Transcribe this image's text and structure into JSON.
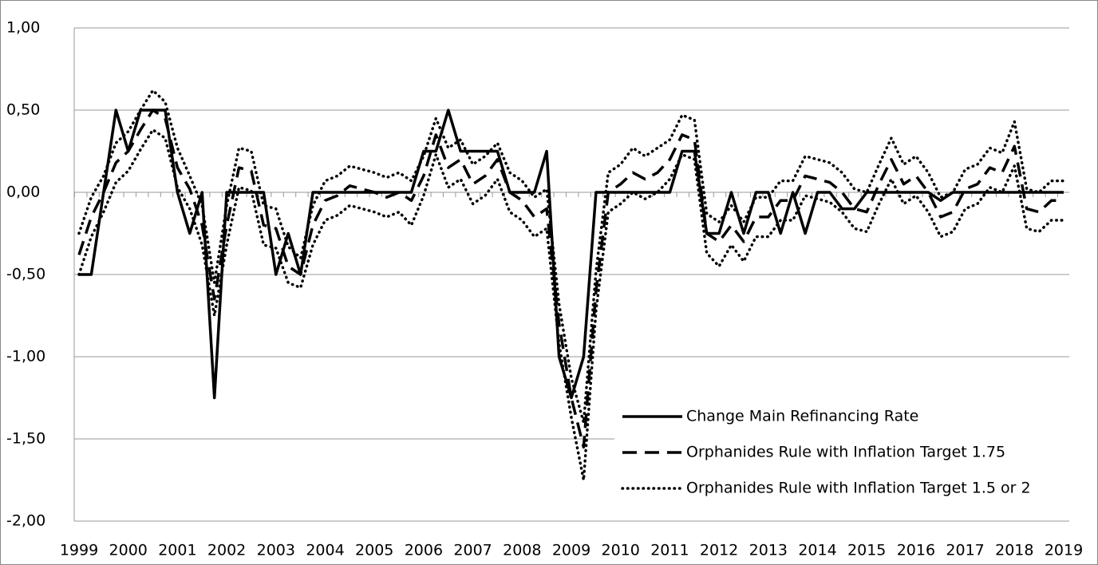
{
  "chart_data": {
    "type": "line",
    "x": [
      1999,
      1999.25,
      1999.5,
      1999.75,
      2000,
      2000.25,
      2000.5,
      2000.75,
      2001,
      2001.25,
      2001.5,
      2001.75,
      2002,
      2002.25,
      2002.5,
      2002.75,
      2003,
      2003.25,
      2003.5,
      2003.75,
      2004,
      2004.25,
      2004.5,
      2004.75,
      2005,
      2005.25,
      2005.5,
      2005.75,
      2006,
      2006.25,
      2006.5,
      2006.75,
      2007,
      2007.25,
      2007.5,
      2007.75,
      2008,
      2008.25,
      2008.5,
      2008.75,
      2009,
      2009.25,
      2009.5,
      2009.75,
      2010,
      2010.25,
      2010.5,
      2010.75,
      2011,
      2011.25,
      2011.5,
      2011.75,
      2012,
      2012.25,
      2012.5,
      2012.75,
      2013,
      2013.25,
      2013.5,
      2013.75,
      2014,
      2014.25,
      2014.5,
      2014.75,
      2015,
      2015.25,
      2015.5,
      2015.75,
      2016,
      2016.25,
      2016.5,
      2016.75,
      2017,
      2017.25,
      2017.5,
      2017.75,
      2018,
      2018.25,
      2018.5,
      2018.75,
      2019
    ],
    "series": [
      {
        "name": "Change Main Refinancing Rate",
        "color": "#000000",
        "style": "solid",
        "values": [
          -0.5,
          -0.5,
          0,
          0.5,
          0.25,
          0.5,
          0.5,
          0.5,
          0,
          -0.25,
          0,
          -1.25,
          0,
          0,
          0,
          0,
          -0.5,
          -0.25,
          -0.5,
          0,
          0,
          0,
          0,
          0,
          0,
          0,
          0,
          0,
          0.25,
          0.25,
          0.5,
          0.25,
          0.25,
          0.25,
          0.25,
          0,
          0,
          0,
          0.25,
          -1,
          -1.25,
          -1,
          0,
          0,
          0,
          0,
          0,
          0,
          0,
          0.25,
          0.25,
          -0.25,
          -0.25,
          0,
          -0.25,
          0,
          0,
          -0.25,
          0,
          -0.25,
          0,
          0,
          -0.1,
          -0.1,
          0,
          0,
          0,
          0,
          0,
          0,
          -0.05,
          0,
          0,
          0,
          0,
          0,
          0,
          0,
          0,
          0,
          0
        ]
      },
      {
        "name": "Orphanides Rule with Inflation Target 1.75",
        "color": "#000000",
        "style": "dashed",
        "values": [
          -0.38,
          -0.15,
          0,
          0.18,
          0.25,
          0.38,
          0.5,
          0.45,
          0.15,
          0.02,
          -0.2,
          -0.65,
          -0.2,
          0.15,
          0.13,
          -0.2,
          -0.22,
          -0.45,
          -0.5,
          -0.2,
          -0.05,
          -0.02,
          0.04,
          0.02,
          0,
          -0.03,
          0,
          -0.05,
          0.1,
          0.35,
          0.15,
          0.2,
          0.05,
          0.1,
          0.2,
          0,
          -0.05,
          -0.15,
          -0.1,
          -0.8,
          -1.25,
          -1.55,
          -0.6,
          0,
          0.05,
          0.12,
          0.08,
          0.12,
          0.2,
          0.35,
          0.32,
          -0.25,
          -0.3,
          -0.2,
          -0.3,
          -0.15,
          -0.15,
          -0.05,
          -0.05,
          0.1,
          0.08,
          0.06,
          0,
          -0.1,
          -0.12,
          0.05,
          0.2,
          0.05,
          0.1,
          0,
          -0.15,
          -0.12,
          0.02,
          0.05,
          0.15,
          0.12,
          0.28,
          -0.1,
          -0.12,
          -0.05,
          -0.05
        ]
      },
      {
        "name": "Orphanides Rule with Inflation Target 1.5 or 2",
        "color": "#000000",
        "style": "dotted",
        "values": [
          -0.25,
          -0.03,
          0.1,
          0.3,
          0.37,
          0.5,
          0.62,
          0.55,
          0.27,
          0.1,
          -0.08,
          -0.55,
          -0.08,
          0.27,
          0.25,
          -0.08,
          -0.1,
          -0.33,
          -0.4,
          -0.08,
          0.07,
          0.1,
          0.16,
          0.14,
          0.12,
          0.09,
          0.12,
          0.07,
          0.22,
          0.45,
          0.27,
          0.32,
          0.17,
          0.22,
          0.3,
          0.12,
          0.07,
          -0.03,
          0.02,
          -0.68,
          -1.13,
          -1.4,
          -0.48,
          0.12,
          0.17,
          0.27,
          0.22,
          0.27,
          0.32,
          0.47,
          0.44,
          -0.13,
          -0.18,
          -0.08,
          -0.18,
          -0.03,
          -0.03,
          0.07,
          0.07,
          0.22,
          0.2,
          0.18,
          0.12,
          0.02,
          0,
          0.17,
          0.33,
          0.17,
          0.22,
          0.12,
          -0.03,
          0,
          0.14,
          0.17,
          0.27,
          0.24,
          0.43,
          0.02,
          0,
          0.07,
          0.07
        ]
      },
      {
        "color": "#000000",
        "style": "dotted",
        "values": [
          -0.5,
          -0.27,
          -0.12,
          0.06,
          0.13,
          0.26,
          0.38,
          0.33,
          0.03,
          -0.1,
          -0.32,
          -0.75,
          -0.32,
          0.03,
          0.01,
          -0.32,
          -0.34,
          -0.55,
          -0.58,
          -0.32,
          -0.17,
          -0.14,
          -0.08,
          -0.1,
          -0.12,
          -0.15,
          -0.12,
          -0.2,
          -0.02,
          0.23,
          0.03,
          0.08,
          -0.07,
          -0.02,
          0.08,
          -0.12,
          -0.17,
          -0.27,
          -0.22,
          -0.92,
          -1.37,
          -1.75,
          -0.72,
          -0.12,
          -0.07,
          0,
          -0.04,
          0,
          0.08,
          0.23,
          0.2,
          -0.37,
          -0.45,
          -0.32,
          -0.42,
          -0.27,
          -0.27,
          -0.17,
          -0.17,
          -0.02,
          -0.04,
          -0.06,
          -0.12,
          -0.22,
          -0.24,
          -0.07,
          0.08,
          -0.07,
          -0.02,
          -0.12,
          -0.27,
          -0.24,
          -0.1,
          -0.07,
          0.03,
          0,
          0.16,
          -0.22,
          -0.24,
          -0.17,
          -0.17
        ]
      }
    ],
    "xlim": [
      1999,
      2019
    ],
    "xticks": [
      1999,
      2000,
      2001,
      2002,
      2003,
      2004,
      2005,
      2006,
      2007,
      2008,
      2009,
      2010,
      2011,
      2012,
      2013,
      2014,
      2015,
      2016,
      2017,
      2018,
      2019
    ],
    "ylim": [
      -2,
      1
    ],
    "yticks": [
      {
        "value": 1,
        "label": "1,00"
      },
      {
        "value": 0.5,
        "label": "0,50"
      },
      {
        "value": 0,
        "label": "0,00"
      },
      {
        "value": -0.5,
        "label": "-0,50"
      },
      {
        "value": -1,
        "label": "-1,00"
      },
      {
        "value": -1.5,
        "label": "-1,50"
      },
      {
        "value": -2,
        "label": "-2,00"
      }
    ],
    "grid": true,
    "legend": "lower right"
  }
}
